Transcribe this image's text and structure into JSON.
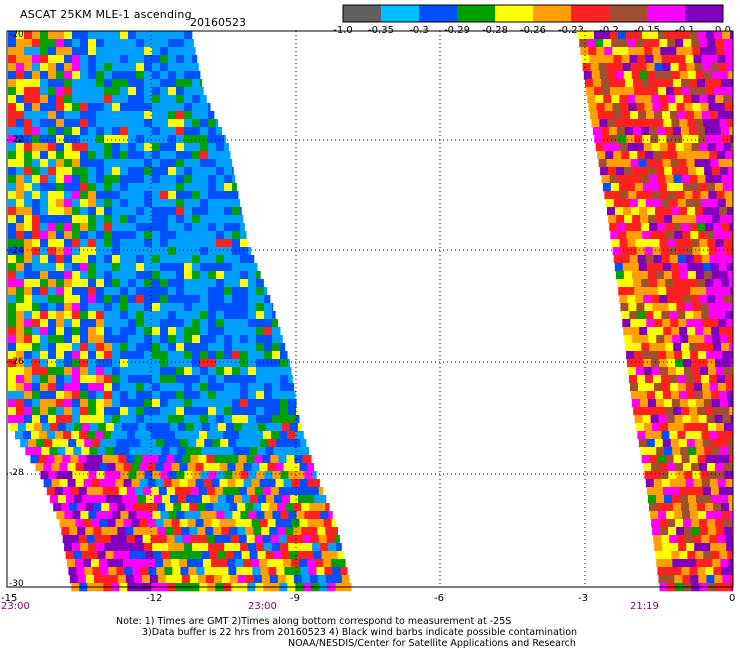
{
  "header": {
    "title": "ASCAT 25KM MLE-1 ascending",
    "date": "20160523"
  },
  "colorbar": {
    "labels": [
      "-1.0",
      "-0.35",
      "-0.3",
      "-0.29",
      "-0.28",
      "-0.26",
      "-0.23",
      "-0.2",
      "-0.15",
      "-0.1",
      "0.0"
    ],
    "colors": [
      "#606060",
      "#00c0ff",
      "#0050ff",
      "#00a000",
      "#ffff00",
      "#ffa000",
      "#ff2020",
      "#a05030",
      "#ff00ff",
      "#8000c0"
    ]
  },
  "map": {
    "lon_ticks": [
      "-15",
      "-12",
      "-9",
      "-6",
      "-3",
      "0"
    ],
    "lat_ticks": [
      "-20",
      "-22",
      "-24",
      "-26",
      "-28",
      "-30"
    ],
    "time_labels": [
      "23:00",
      "23:00",
      "21:19"
    ]
  },
  "notes": {
    "line1": "Note: 1) Times are GMT 2)Times along bottom correspond to measurement at -25S",
    "line2": "3)Data buffer is 22 hrs from 20160523 4) Black wind barbs indicate possible contamination",
    "line3": "NOAA/NESDIS/Center for Satellite Applications and Research"
  }
}
